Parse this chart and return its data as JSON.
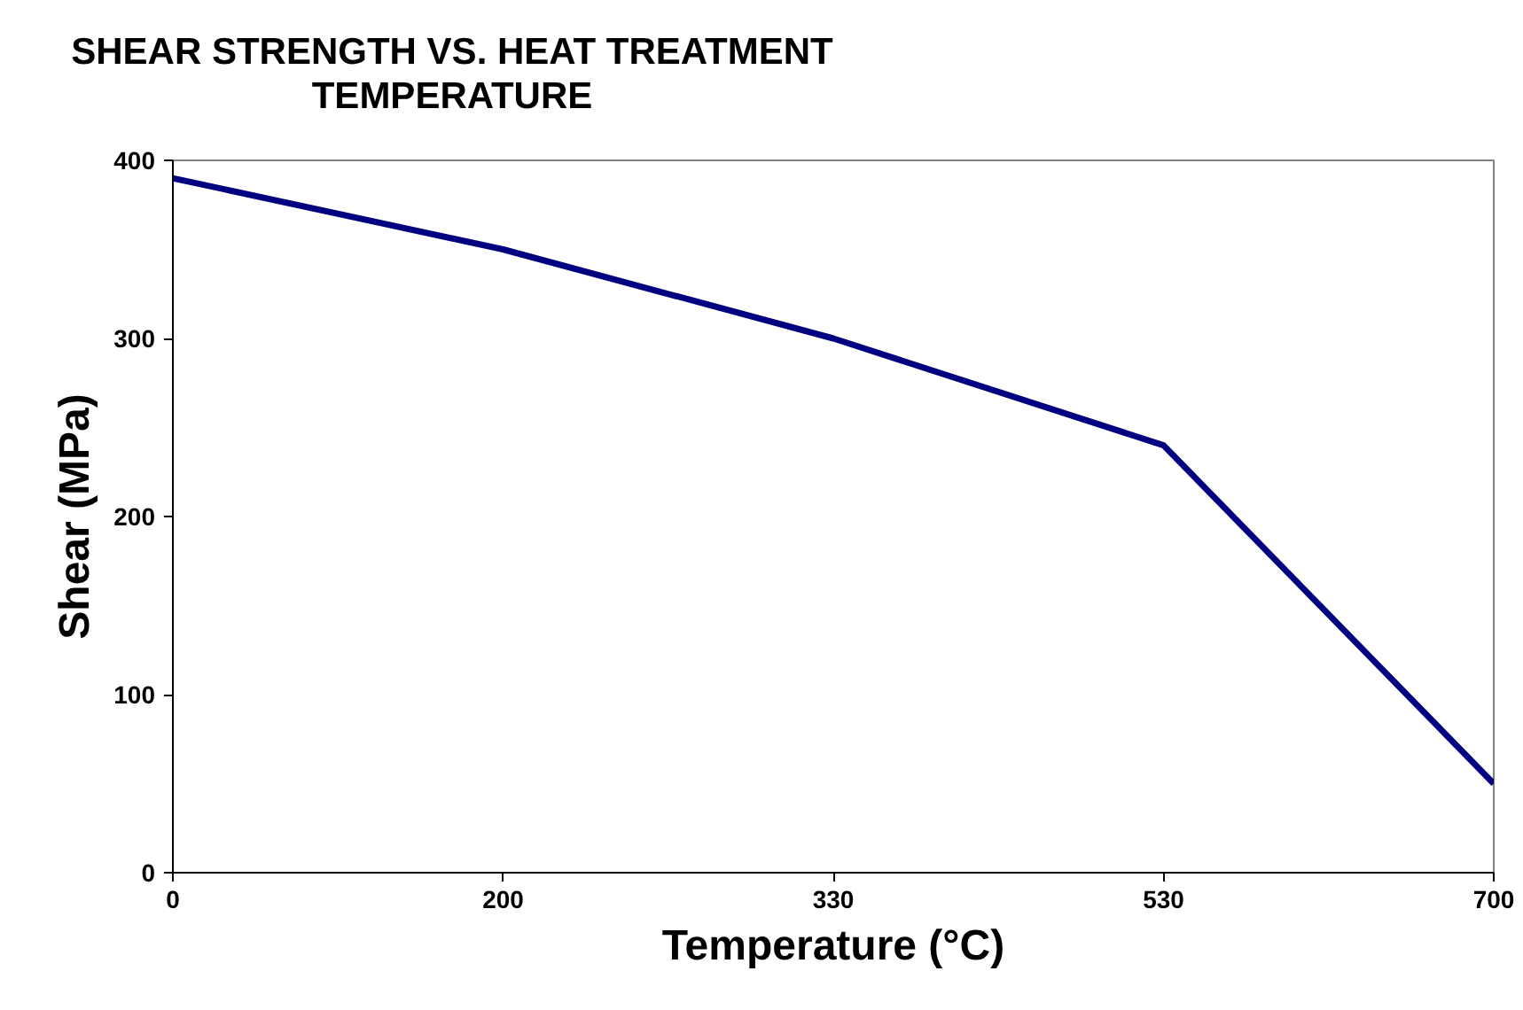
{
  "chart_data": {
    "type": "line",
    "title": "SHEAR STRENGTH VS. HEAT TREATMENT TEMPERATURE",
    "xlabel": "Temperature (°C)",
    "ylabel": "Shear (MPa)",
    "categories": [
      "0",
      "200",
      "330",
      "530",
      "700"
    ],
    "series": [
      {
        "color": "#000080",
        "values": [
          390,
          350,
          300,
          240,
          50
        ]
      }
    ],
    "ylim": [
      0,
      400
    ],
    "yticks": [
      0,
      100,
      200,
      300,
      400
    ],
    "grid": false,
    "marker": "none",
    "line_style": "solid"
  }
}
